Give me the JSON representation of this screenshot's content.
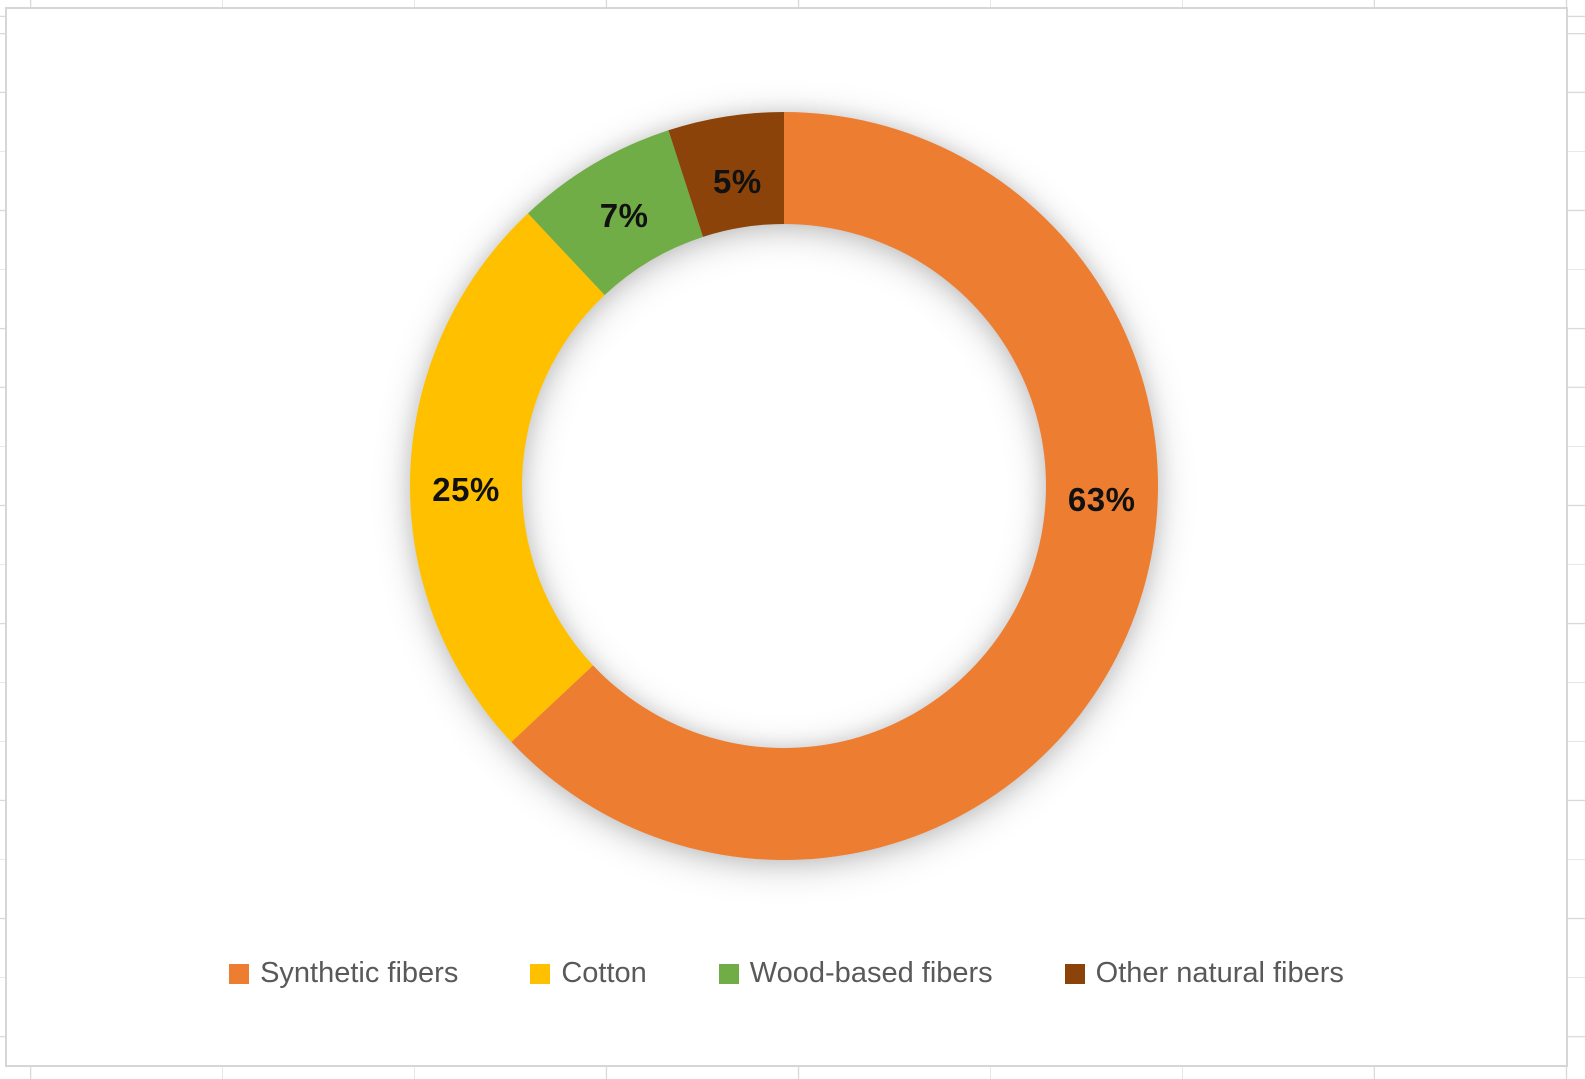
{
  "chart_data": {
    "type": "pie",
    "subtype": "donut",
    "title": "",
    "categories": [
      "Synthetic fibers",
      "Cotton",
      "Wood-based fibers",
      "Other natural fibers"
    ],
    "values": [
      63,
      25,
      7,
      5
    ],
    "unit": "%",
    "data_labels": [
      "63%",
      "25%",
      "7%",
      "5%"
    ],
    "colors": [
      "#ED7D31",
      "#FFC000",
      "#70AD47",
      "#8B4309"
    ],
    "start_angle_deg": 0,
    "direction": "clockwise",
    "donut_hole_ratio": 0.7,
    "label_angles_deg": [
      92.5,
      269.3,
      329.4,
      351.3
    ],
    "label_radii": [
      318,
      318,
      314,
      308
    ],
    "legend_position": "bottom",
    "legend": [
      {
        "label": "Synthetic fibers",
        "color": "#ED7D31"
      },
      {
        "label": "Cotton",
        "color": "#FFC000"
      },
      {
        "label": "Wood-based fibers",
        "color": "#70AD47"
      },
      {
        "label": "Other natural fibers",
        "color": "#8B4309"
      }
    ]
  }
}
